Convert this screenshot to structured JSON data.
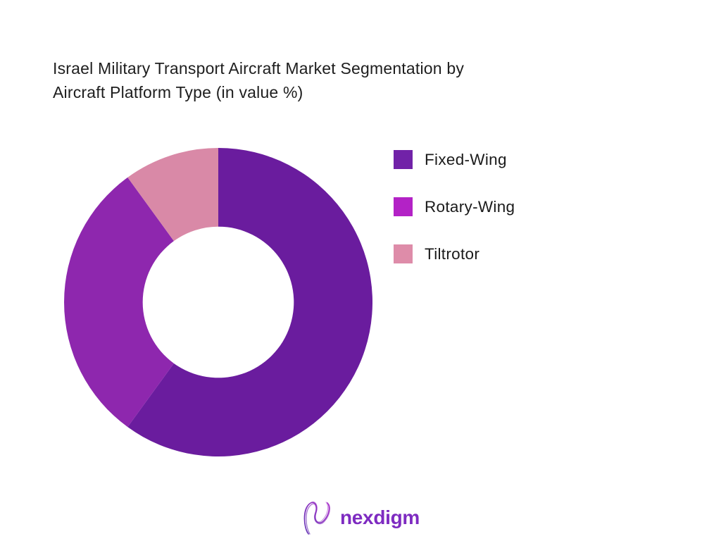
{
  "page": {
    "background_color": "#ffffff"
  },
  "title": {
    "lines": [
      "Israel Military Transport Aircraft Market Segmentation by",
      "Aircraft Platform Type (in value %)"
    ],
    "color": "#1e1e1e"
  },
  "chart_data": {
    "type": "pie",
    "subtype": "donut",
    "title": "Israel Military Transport Aircraft Market Segmentation by Aircraft Platform Type (in value %)",
    "unit": "value %",
    "categories": [
      "Fixed-Wing",
      "Rotary-Wing",
      "Tiltrotor"
    ],
    "values": [
      60,
      30,
      10
    ],
    "colors": [
      "#6A1C9E",
      "#8E27AE",
      "#D989A7"
    ],
    "start_angle_deg": 0,
    "direction": "clockwise",
    "inner_radius_ratio": 0.49,
    "legend_position": "right",
    "data_labels": false
  },
  "legend": {
    "text_color": "#1b1b1b",
    "items": [
      {
        "label": "Fixed-Wing",
        "color": "#7122A8"
      },
      {
        "label": "Rotary-Wing",
        "color": "#B322C6"
      },
      {
        "label": "Tiltrotor",
        "color": "#DE8CA9"
      }
    ]
  },
  "footer": {
    "brand": "nexdigm",
    "brand_color": "#7E2BC1",
    "brand_gradient": [
      "#5B2AB0",
      "#A62BC8"
    ],
    "logo_icon": "nexdigm-swirl-n-icon"
  }
}
